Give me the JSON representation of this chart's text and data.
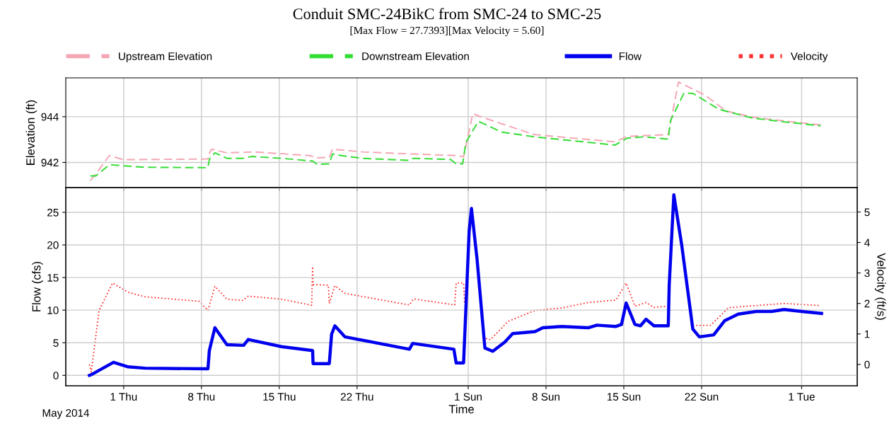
{
  "chart_data": [
    {
      "type": "line",
      "title": "Conduit SMC-24BikC from SMC-24 to SMC-25",
      "subtitle": "[Max Flow = 27.7393][Max Velocity = 5.60]",
      "ylabel": "Elevation (ft)",
      "legend": "top",
      "grid": true,
      "tick_labels": "y",
      "xlim": [
        "2014-04-25T19:00",
        "2014-07-06T00:00"
      ],
      "xticks": [
        {
          "value": "2014-05-01",
          "label": null
        },
        {
          "value": "2014-05-08",
          "label": null
        },
        {
          "value": "2014-05-15",
          "label": null
        },
        {
          "value": "2014-05-22",
          "label": null
        },
        {
          "value": "2014-06-01",
          "label": null
        },
        {
          "value": "2014-06-08",
          "label": null
        },
        {
          "value": "2014-06-15",
          "label": null
        },
        {
          "value": "2014-06-22",
          "label": null
        },
        {
          "value": "2014-07-01",
          "label": null
        }
      ],
      "ylim": [
        940.9,
        945.7
      ],
      "yticks": [
        942,
        944
      ],
      "series": [
        {
          "name": "Upstream Elevation",
          "color": "#f4a6b4",
          "line_style": "dashed",
          "x": [
            "2014-04-28T00:00",
            "2014-04-28T12:00",
            "2014-04-29T17:00",
            "2014-05-01T00:00",
            "2014-05-08T14:00",
            "2014-05-08T17:00",
            "2014-05-08T22:00",
            "2014-05-10T07:00",
            "2014-05-12T17:00",
            "2014-05-17T17:00",
            "2014-05-18T10:00",
            "2014-05-19T12:00",
            "2014-05-19T19:00",
            "2014-05-22T12:00",
            "2014-05-27T00:00",
            "2014-05-30T22:00",
            "2014-05-31T14:00",
            "2014-06-01T10:00",
            "2014-06-02T00:00",
            "2014-06-06T22:00",
            "2014-06-14T05:00",
            "2014-06-15T07:00",
            "2014-06-19T00:00",
            "2014-06-19T22:00",
            "2014-06-22T07:00",
            "2014-06-24T05:00",
            "2014-06-26T14:00",
            "2014-06-29T00:00",
            "2014-07-02T17:00"
          ],
          "values": [
            941.2,
            941.5,
            942.3,
            942.12,
            942.15,
            942.4,
            942.58,
            942.42,
            942.46,
            942.3,
            942.2,
            942.22,
            942.58,
            942.46,
            942.37,
            942.3,
            942.25,
            944.14,
            944.02,
            943.22,
            942.9,
            943.14,
            943.22,
            945.52,
            944.95,
            944.25,
            943.98,
            943.84,
            943.64
          ]
        },
        {
          "name": "Downstream Elevation",
          "color": "#33dd33",
          "line_style": "dashed",
          "x": [
            "2014-04-28T00:00",
            "2014-04-28T12:00",
            "2014-04-29T17:00",
            "2014-05-01T00:00",
            "2014-05-02T22:00",
            "2014-05-08T14:00",
            "2014-05-08T17:00",
            "2014-05-09T05:00",
            "2014-05-10T07:00",
            "2014-05-11T18:00",
            "2014-05-12T12:00",
            "2014-05-15T05:00",
            "2014-05-18T00:00",
            "2014-05-18T10:00",
            "2014-05-19T12:00",
            "2014-05-19T19:00",
            "2014-05-20T14:00",
            "2014-05-22T12:00",
            "2014-05-26T17:00",
            "2014-05-27T02:00",
            "2014-05-30T10:00",
            "2014-05-30T22:00",
            "2014-05-31T12:00",
            "2014-05-31T19:00",
            "2014-06-01T22:00",
            "2014-06-04T00:00",
            "2014-06-06T22:00",
            "2014-06-11T10:00",
            "2014-06-14T05:00",
            "2014-06-15T07:00",
            "2014-06-16T19:00",
            "2014-06-19T00:00",
            "2014-06-19T05:00",
            "2014-06-20T10:00",
            "2014-06-21T05:00",
            "2014-06-23T14:00",
            "2014-06-26T14:00",
            "2014-06-29T00:00",
            "2014-07-02T17:00"
          ],
          "values": [
            941.41,
            941.41,
            941.9,
            941.85,
            941.79,
            941.77,
            942.13,
            942.42,
            942.18,
            942.18,
            942.26,
            942.18,
            942.06,
            941.91,
            941.94,
            942.37,
            942.3,
            942.18,
            942.09,
            942.18,
            942.13,
            941.94,
            941.94,
            942.88,
            943.8,
            943.33,
            943.12,
            942.9,
            942.76,
            943.06,
            943.12,
            943.02,
            943.84,
            945.04,
            945.02,
            944.32,
            943.94,
            943.8,
            943.6
          ]
        }
      ]
    },
    {
      "type": "line",
      "xlabel": "Time",
      "ylabel": "Flow (cfs)",
      "y2label": "Velocity (ft/s)",
      "legend": "top",
      "grid": true,
      "annotations": [
        "May 2014"
      ],
      "xlim": [
        "2014-04-25T19:00",
        "2014-07-06T00:00"
      ],
      "xticks": [
        {
          "value": "2014-05-01",
          "label": "1 Thu"
        },
        {
          "value": "2014-05-08",
          "label": "8 Thu"
        },
        {
          "value": "2014-05-15",
          "label": "15 Thu"
        },
        {
          "value": "2014-05-22",
          "label": "22 Thu"
        },
        {
          "value": "2014-06-01",
          "label": "1 Sun"
        },
        {
          "value": "2014-06-08",
          "label": "8 Sun"
        },
        {
          "value": "2014-06-15",
          "label": "15 Sun"
        },
        {
          "value": "2014-06-22",
          "label": "22 Sun"
        },
        {
          "value": "2014-07-01",
          "label": "1 Tue"
        }
      ],
      "ylim": [
        -1.6,
        28.8
      ],
      "yticks": [
        0,
        5,
        10,
        15,
        20,
        25
      ],
      "y2lim": [
        -0.7,
        5.8
      ],
      "y2ticks": [
        0,
        1,
        2,
        3,
        4,
        5
      ],
      "series": [
        {
          "name": "Velocity",
          "color": "#ff3333",
          "line_style": "dotted",
          "axis": "y2",
          "x": [
            "2014-04-27T22:00",
            "2014-04-28T02:00",
            "2014-04-28T19:00",
            "2014-04-30T00:00",
            "2014-05-01T11:00",
            "2014-05-02T22:00",
            "2014-05-07T19:00",
            "2014-05-08T14:00",
            "2014-05-09T05:00",
            "2014-05-10T07:00",
            "2014-05-11T17:00",
            "2014-05-12T05:00",
            "2014-05-15T05:00",
            "2014-05-17T22:00",
            "2014-05-18T00:00",
            "2014-05-18T01:00",
            "2014-05-19T10:00",
            "2014-05-19T12:00",
            "2014-05-20T00:00",
            "2014-05-20T22:00",
            "2014-05-26T17:00",
            "2014-05-27T02:00",
            "2014-05-30T19:00",
            "2014-05-30T22:00",
            "2014-05-31T14:00",
            "2014-05-31T16:00",
            "2014-06-01T12:00",
            "2014-06-02T07:00",
            "2014-06-03T00:00",
            "2014-06-04T14:00",
            "2014-06-07T00:00",
            "2014-06-09T10:00",
            "2014-06-11T19:00",
            "2014-06-14T07:00",
            "2014-06-15T05:00",
            "2014-06-16T00:00",
            "2014-06-17T00:00",
            "2014-06-17T17:00",
            "2014-06-19T00:00",
            "2014-06-20T00:00",
            "2014-06-21T05:00",
            "2014-06-22T19:00",
            "2014-06-24T10:00",
            "2014-06-26T02:00",
            "2014-06-29T10:00",
            "2014-07-02T17:00"
          ],
          "values": [
            0.0,
            -0.25,
            1.77,
            2.67,
            2.36,
            2.22,
            2.07,
            1.77,
            2.56,
            2.14,
            2.1,
            2.24,
            2.14,
            1.94,
            3.21,
            2.62,
            2.6,
            2.0,
            2.58,
            2.33,
            1.95,
            2.15,
            1.95,
            2.67,
            2.67,
            2.04,
            null,
            0.88,
            0.81,
            1.41,
            1.77,
            1.85,
            2.03,
            2.11,
            2.67,
            1.91,
            2.03,
            1.87,
            1.91,
            null,
            1.28,
            1.28,
            1.86,
            1.91,
            2.0,
            1.93
          ]
        },
        {
          "name": "Flow",
          "color": "#0000ee",
          "line_style": "solid",
          "x": [
            "2014-04-27T22:00",
            "2014-04-28T02:00",
            "2014-04-30T02:00",
            "2014-05-01T10:00",
            "2014-05-02T22:00",
            "2014-05-08T14:00",
            "2014-05-08T17:00",
            "2014-05-09T05:00",
            "2014-05-10T07:00",
            "2014-05-11T19:00",
            "2014-05-12T05:00",
            "2014-05-15T05:00",
            "2014-05-18T00:00",
            "2014-05-18T01:00",
            "2014-05-19T12:00",
            "2014-05-19T17:00",
            "2014-05-20T00:00",
            "2014-05-20T22:00",
            "2014-05-26T17:00",
            "2014-05-27T00:00",
            "2014-05-30T17:00",
            "2014-05-30T22:00",
            "2014-05-31T14:00",
            "2014-06-01T02:00",
            "2014-06-01T07:00",
            "2014-06-01T19:00",
            "2014-06-02T12:00",
            "2014-06-03T05:00",
            "2014-06-04T07:00",
            "2014-06-05T00:00",
            "2014-06-07T00:00",
            "2014-06-07T17:00",
            "2014-06-09T10:00",
            "2014-06-11T19:00",
            "2014-06-12T14:00",
            "2014-06-14T07:00",
            "2014-06-14T19:00",
            "2014-06-15T05:00",
            "2014-06-16T00:00",
            "2014-06-16T12:00",
            "2014-06-17T00:00",
            "2014-06-17T17:00",
            "2014-06-19T00:00",
            "2014-06-19T02:00",
            "2014-06-19T12:00",
            "2014-06-20T05:00",
            "2014-06-21T05:00",
            "2014-06-21T19:00",
            "2014-06-23T02:00",
            "2014-06-24T02:00",
            "2014-06-25T07:00",
            "2014-06-26T22:00",
            "2014-06-28T07:00",
            "2014-06-29T10:00",
            "2014-07-01T00:00",
            "2014-07-02T19:00"
          ],
          "values": [
            0.0,
            0.1,
            2.0,
            1.3,
            1.1,
            1.0,
            3.8,
            7.3,
            4.7,
            4.6,
            5.5,
            4.4,
            3.8,
            1.8,
            1.8,
            6.3,
            7.6,
            5.9,
            4.0,
            4.9,
            4.0,
            1.9,
            1.9,
            22.1,
            25.6,
            17.9,
            4.2,
            3.7,
            5.1,
            6.4,
            6.7,
            7.3,
            7.5,
            7.3,
            7.7,
            7.5,
            7.8,
            11.1,
            7.8,
            7.6,
            8.6,
            7.6,
            7.6,
            13.8,
            27.7,
            20.0,
            7.1,
            5.9,
            6.2,
            8.4,
            9.4,
            9.8,
            9.8,
            10.1,
            9.8,
            9.5
          ]
        }
      ]
    }
  ]
}
